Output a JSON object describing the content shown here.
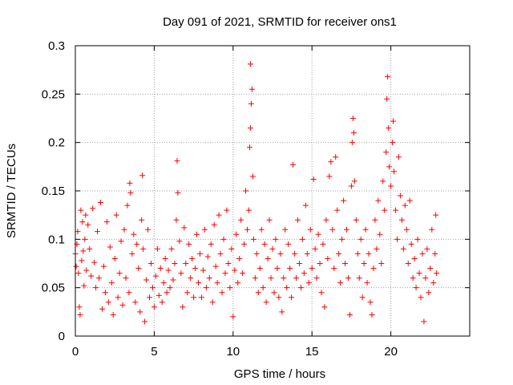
{
  "chart_data": {
    "type": "scatter",
    "title": "Day 091 of 2021, SRMTID for receiver ons1",
    "xlabel": "GPS time / hours",
    "ylabel": "SRMTID / TECUs",
    "xlim": [
      0,
      25
    ],
    "ylim": [
      0,
      0.3
    ],
    "x_ticks": [
      0,
      5,
      10,
      15,
      20
    ],
    "y_ticks": [
      0,
      0.05,
      0.1,
      0.15,
      0.2,
      0.25,
      0.3
    ],
    "x_tick_labels": [
      "0",
      "5",
      "10",
      "15",
      "20"
    ],
    "y_tick_labels": [
      "0",
      "0.05",
      "0.1",
      "0.15",
      "0.2",
      "0.25",
      "0.3"
    ],
    "grid": true,
    "marker": "+",
    "series": [
      {
        "name": "SRMTID",
        "color": "#ff0000",
        "points": [
          [
            0.0,
            0.085
          ],
          [
            0.05,
            0.072
          ],
          [
            0.1,
            0.095
          ],
          [
            0.15,
            0.108
          ],
          [
            0.2,
            0.065
          ],
          [
            0.25,
            0.03
          ],
          [
            0.3,
            0.022
          ],
          [
            0.35,
            0.13
          ],
          [
            0.4,
            0.078
          ],
          [
            0.45,
            0.118
          ],
          [
            0.5,
            0.088
          ],
          [
            0.55,
            0.052
          ],
          [
            0.6,
            0.1
          ],
          [
            0.65,
            0.125
          ],
          [
            0.7,
            0.068
          ],
          [
            0.8,
            0.115
          ],
          [
            0.9,
            0.09
          ],
          [
            1.0,
            0.062
          ],
          [
            1.1,
            0.132
          ],
          [
            1.2,
            0.076
          ],
          [
            1.3,
            0.05
          ],
          [
            1.4,
            0.108
          ],
          [
            1.5,
            0.06
          ],
          [
            1.6,
            0.138
          ],
          [
            1.7,
            0.028
          ],
          [
            1.8,
            0.072
          ],
          [
            1.9,
            0.045
          ],
          [
            2.0,
            0.118
          ],
          [
            2.1,
            0.035
          ],
          [
            2.2,
            0.092
          ],
          [
            2.3,
            0.055
          ],
          [
            2.4,
            0.022
          ],
          [
            2.5,
            0.08
          ],
          [
            2.6,
            0.125
          ],
          [
            2.7,
            0.04
          ],
          [
            2.8,
            0.065
          ],
          [
            2.9,
            0.098
          ],
          [
            3.0,
            0.032
          ],
          [
            3.1,
            0.11
          ],
          [
            3.2,
            0.06
          ],
          [
            3.3,
            0.135
          ],
          [
            3.4,
            0.045
          ],
          [
            3.45,
            0.158
          ],
          [
            3.5,
            0.148
          ],
          [
            3.6,
            0.085
          ],
          [
            3.7,
            0.105
          ],
          [
            3.8,
            0.035
          ],
          [
            3.9,
            0.095
          ],
          [
            4.0,
            0.07
          ],
          [
            4.1,
            0.025
          ],
          [
            4.2,
            0.12
          ],
          [
            4.25,
            0.166
          ],
          [
            4.3,
            0.09
          ],
          [
            4.4,
            0.015
          ],
          [
            4.5,
            0.058
          ],
          [
            4.6,
            0.11
          ],
          [
            4.7,
            0.04
          ],
          [
            4.8,
            0.075
          ],
          [
            4.9,
            0.05
          ],
          [
            5.0,
            0.03
          ],
          [
            5.1,
            0.062
          ],
          [
            5.2,
            0.09
          ],
          [
            5.3,
            0.042
          ],
          [
            5.4,
            0.07
          ],
          [
            5.5,
            0.035
          ],
          [
            5.6,
            0.055
          ],
          [
            5.7,
            0.08
          ],
          [
            5.8,
            0.045
          ],
          [
            5.9,
            0.068
          ],
          [
            6.0,
            0.05
          ],
          [
            6.1,
            0.09
          ],
          [
            6.2,
            0.058
          ],
          [
            6.3,
            0.075
          ],
          [
            6.4,
            0.12
          ],
          [
            6.45,
            0.181
          ],
          [
            6.5,
            0.148
          ],
          [
            6.6,
            0.098
          ],
          [
            6.7,
            0.065
          ],
          [
            6.8,
            0.03
          ],
          [
            6.9,
            0.112
          ],
          [
            7.0,
            0.075
          ],
          [
            7.1,
            0.045
          ],
          [
            7.2,
            0.095
          ],
          [
            7.3,
            0.06
          ],
          [
            7.4,
            0.08
          ],
          [
            7.5,
            0.04
          ],
          [
            7.6,
            0.07
          ],
          [
            7.7,
            0.105
          ],
          [
            7.8,
            0.055
          ],
          [
            7.9,
            0.085
          ],
          [
            8.0,
            0.04
          ],
          [
            8.1,
            0.068
          ],
          [
            8.2,
            0.11
          ],
          [
            8.3,
            0.05
          ],
          [
            8.4,
            0.082
          ],
          [
            8.5,
            0.06
          ],
          [
            8.6,
            0.095
          ],
          [
            8.7,
            0.035
          ],
          [
            8.8,
            0.115
          ],
          [
            8.9,
            0.072
          ],
          [
            9.0,
            0.055
          ],
          [
            9.1,
            0.125
          ],
          [
            9.2,
            0.085
          ],
          [
            9.3,
            0.045
          ],
          [
            9.4,
            0.1
          ],
          [
            9.5,
            0.065
          ],
          [
            9.6,
            0.13
          ],
          [
            9.7,
            0.075
          ],
          [
            9.8,
            0.05
          ],
          [
            9.9,
            0.09
          ],
          [
            10.0,
            0.02
          ],
          [
            10.1,
            0.068
          ],
          [
            10.2,
            0.105
          ],
          [
            10.3,
            0.055
          ],
          [
            10.4,
            0.08
          ],
          [
            10.5,
            0.12
          ],
          [
            10.6,
            0.065
          ],
          [
            10.7,
            0.095
          ],
          [
            10.8,
            0.15
          ],
          [
            10.9,
            0.11
          ],
          [
            11.0,
            0.13
          ],
          [
            11.05,
            0.195
          ],
          [
            11.1,
            0.215
          ],
          [
            11.15,
            0.24
          ],
          [
            11.2,
            0.255
          ],
          [
            11.1,
            0.281
          ],
          [
            11.25,
            0.165
          ],
          [
            11.3,
            0.1
          ],
          [
            11.4,
            0.06
          ],
          [
            11.5,
            0.085
          ],
          [
            11.6,
            0.045
          ],
          [
            11.7,
            0.07
          ],
          [
            11.8,
            0.11
          ],
          [
            11.9,
            0.05
          ],
          [
            12.0,
            0.095
          ],
          [
            12.1,
            0.035
          ],
          [
            12.2,
            0.08
          ],
          [
            12.3,
            0.12
          ],
          [
            12.4,
            0.06
          ],
          [
            12.5,
            0.09
          ],
          [
            12.6,
            0.045
          ],
          [
            12.7,
            0.1
          ],
          [
            12.8,
            0.07
          ],
          [
            12.9,
            0.04
          ],
          [
            13.0,
            0.085
          ],
          [
            13.1,
            0.025
          ],
          [
            13.2,
            0.06
          ],
          [
            13.3,
            0.11
          ],
          [
            13.4,
            0.05
          ],
          [
            13.5,
            0.095
          ],
          [
            13.6,
            0.07
          ],
          [
            13.7,
            0.04
          ],
          [
            13.8,
            0.177
          ],
          [
            13.9,
            0.085
          ],
          [
            14.0,
            0.06
          ],
          [
            14.1,
            0.12
          ],
          [
            14.2,
            0.075
          ],
          [
            14.3,
            0.05
          ],
          [
            14.4,
            0.1
          ],
          [
            14.5,
            0.065
          ],
          [
            14.6,
            0.135
          ],
          [
            14.7,
            0.085
          ],
          [
            14.8,
            0.055
          ],
          [
            14.9,
            0.11
          ],
          [
            15.0,
            0.07
          ],
          [
            15.1,
            0.162
          ],
          [
            15.2,
            0.09
          ],
          [
            15.3,
            0.06
          ],
          [
            15.4,
            0.105
          ],
          [
            15.5,
            0.075
          ],
          [
            15.6,
            0.045
          ],
          [
            15.7,
            0.095
          ],
          [
            15.8,
            0.03
          ],
          [
            15.9,
            0.12
          ],
          [
            16.0,
            0.08
          ],
          [
            16.1,
            0.165
          ],
          [
            16.2,
            0.18
          ],
          [
            16.3,
            0.11
          ],
          [
            16.4,
            0.07
          ],
          [
            16.5,
            0.185
          ],
          [
            16.6,
            0.13
          ],
          [
            16.7,
            0.085
          ],
          [
            16.8,
            0.055
          ],
          [
            16.9,
            0.1
          ],
          [
            17.0,
            0.14
          ],
          [
            17.1,
            0.075
          ],
          [
            17.2,
            0.11
          ],
          [
            17.3,
            0.06
          ],
          [
            17.4,
            0.022
          ],
          [
            17.5,
            0.155
          ],
          [
            17.55,
            0.2
          ],
          [
            17.6,
            0.225
          ],
          [
            17.65,
            0.21
          ],
          [
            17.7,
            0.16
          ],
          [
            17.8,
            0.12
          ],
          [
            17.9,
            0.085
          ],
          [
            18.0,
            0.06
          ],
          [
            18.1,
            0.1
          ],
          [
            18.2,
            0.04
          ],
          [
            18.3,
            0.075
          ],
          [
            18.4,
            0.11
          ],
          [
            18.5,
            0.055
          ],
          [
            18.6,
            0.085
          ],
          [
            18.7,
            0.035
          ],
          [
            18.8,
            0.022
          ],
          [
            18.9,
            0.07
          ],
          [
            19.0,
            0.12
          ],
          [
            19.1,
            0.09
          ],
          [
            19.2,
            0.14
          ],
          [
            19.3,
            0.105
          ],
          [
            19.4,
            0.075
          ],
          [
            19.5,
            0.16
          ],
          [
            19.6,
            0.13
          ],
          [
            19.7,
            0.19
          ],
          [
            19.75,
            0.245
          ],
          [
            19.8,
            0.268
          ],
          [
            19.85,
            0.215
          ],
          [
            19.9,
            0.175
          ],
          [
            20.0,
            0.155
          ],
          [
            20.1,
            0.2
          ],
          [
            20.15,
            0.222
          ],
          [
            20.2,
            0.17
          ],
          [
            20.3,
            0.13
          ],
          [
            20.4,
            0.1
          ],
          [
            20.5,
            0.185
          ],
          [
            20.6,
            0.145
          ],
          [
            20.7,
            0.12
          ],
          [
            20.8,
            0.09
          ],
          [
            20.9,
            0.135
          ],
          [
            21.0,
            0.11
          ],
          [
            21.1,
            0.075
          ],
          [
            21.2,
            0.14
          ],
          [
            21.3,
            0.095
          ],
          [
            21.4,
            0.06
          ],
          [
            21.5,
            0.08
          ],
          [
            21.6,
            0.05
          ],
          [
            21.7,
            0.1
          ],
          [
            21.8,
            0.065
          ],
          [
            21.9,
            0.04
          ],
          [
            22.0,
            0.085
          ],
          [
            22.1,
            0.015
          ],
          [
            22.2,
            0.06
          ],
          [
            22.3,
            0.09
          ],
          [
            22.4,
            0.045
          ],
          [
            22.5,
            0.07
          ],
          [
            22.6,
            0.11
          ],
          [
            22.7,
            0.055
          ],
          [
            22.8,
            0.085
          ],
          [
            22.85,
            0.125
          ],
          [
            22.9,
            0.065
          ]
        ]
      }
    ]
  }
}
